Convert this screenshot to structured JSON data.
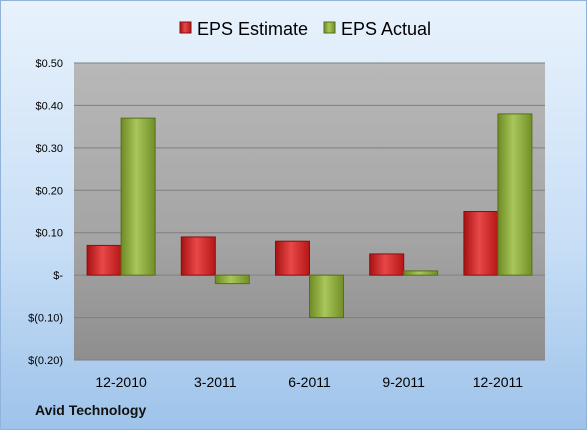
{
  "chart_data": {
    "type": "bar",
    "categories": [
      "12-2010",
      "3-2011",
      "6-2011",
      "9-2011",
      "12-2011"
    ],
    "series": [
      {
        "name": "EPS Estimate",
        "values": [
          0.07,
          0.09,
          0.08,
          0.05,
          0.15
        ],
        "color": "#cc1f1f"
      },
      {
        "name": "EPS Actual",
        "values": [
          0.37,
          -0.02,
          -0.1,
          0.01,
          0.38
        ],
        "color": "#8aa63a"
      }
    ],
    "ylim": [
      -0.2,
      0.5
    ],
    "yticks": [
      {
        "value": 0.5,
        "label": "$0.50"
      },
      {
        "value": 0.4,
        "label": "$0.40"
      },
      {
        "value": 0.3,
        "label": "$0.30"
      },
      {
        "value": 0.2,
        "label": "$0.20"
      },
      {
        "value": 0.1,
        "label": "$0.10"
      },
      {
        "value": 0.0,
        "label": "$-"
      },
      {
        "value": -0.1,
        "label": "$(0.10)"
      },
      {
        "value": -0.2,
        "label": "$(0.20)"
      }
    ],
    "grid": true,
    "legend_position": "top-center"
  },
  "footer": {
    "company": "Avid Technology"
  }
}
